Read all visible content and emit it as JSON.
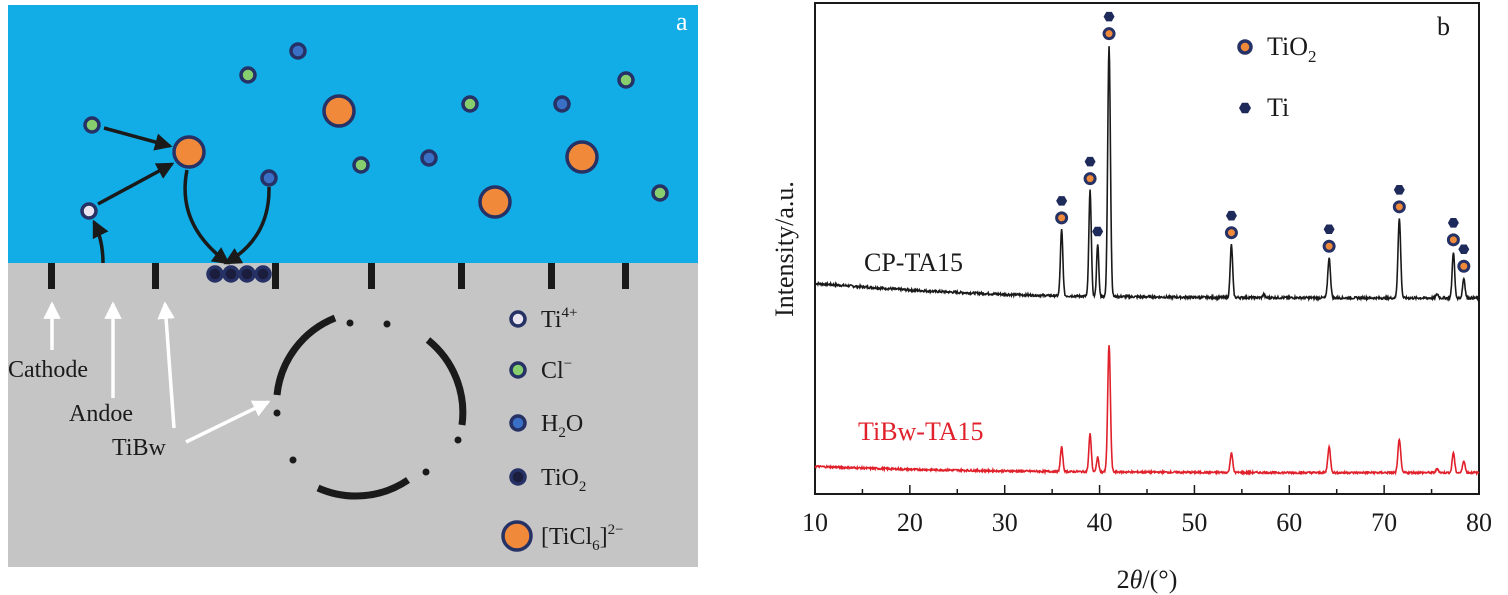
{
  "panel_a": {
    "label": "a",
    "colors": {
      "solution": "#12ADE6",
      "substrate": "#C5C5C6",
      "ti4": "#E8E4F0",
      "cl": "#86CE6E",
      "h2o": "#3A6FC6",
      "tio2": "#1B1D3D",
      "ticl6": "#F08A3A",
      "outline": "#263165"
    },
    "callouts": {
      "cathode": "Cathode",
      "anode": "Andoe",
      "tibw": "TiBw"
    },
    "legend": [
      {
        "key": "ti4",
        "label": "Ti",
        "sup": "4+",
        "sub_pre": "",
        "sub": ""
      },
      {
        "key": "cl",
        "label": "Cl",
        "sup": "−",
        "sub_pre": "",
        "sub": ""
      },
      {
        "key": "h2o",
        "label": "H",
        "sub": "2",
        "after": "O",
        "sup": ""
      },
      {
        "key": "tio2",
        "label": "TiO",
        "sub": "2",
        "after": "",
        "sup": ""
      },
      {
        "key": "ticl6",
        "label": "[TiCl",
        "sub": "6",
        "after": "]",
        "sup": "2−"
      }
    ]
  },
  "chart_data": {
    "type": "line",
    "panel_label": "b",
    "xlabel_parts": {
      "pre": "2",
      "theta": "θ",
      "post": "/(°)"
    },
    "ylabel": "Intensity/a.u.",
    "xlim": [
      10,
      80
    ],
    "xticks": [
      10,
      20,
      30,
      40,
      50,
      60,
      70,
      80
    ],
    "y_ticks_shown": false,
    "grid": false,
    "legend_position": "top-center",
    "legend": [
      {
        "name": "TiO",
        "sub": "2",
        "marker": "ring-dot"
      },
      {
        "name": "Ti",
        "sub": "",
        "marker": "hex"
      }
    ],
    "series": [
      {
        "name": "CP-TA15",
        "color": "#1a1a1a",
        "baseline": [
          [
            10,
            0.5
          ],
          [
            15,
            0.4
          ],
          [
            20,
            0.3
          ],
          [
            25,
            0.23
          ],
          [
            30,
            0.17
          ],
          [
            35,
            0.13
          ],
          [
            40,
            0.11
          ],
          [
            50,
            0.08
          ],
          [
            60,
            0.07
          ],
          [
            70,
            0.06
          ],
          [
            80,
            0.06
          ]
        ],
        "peaks": [
          {
            "x": 36.0,
            "h": 2.0,
            "w": 0.18
          },
          {
            "x": 39.0,
            "h": 3.2,
            "w": 0.18
          },
          {
            "x": 39.8,
            "h": 1.6,
            "w": 0.16
          },
          {
            "x": 41.0,
            "h": 7.6,
            "w": 0.2
          },
          {
            "x": 53.9,
            "h": 1.6,
            "w": 0.18
          },
          {
            "x": 57.3,
            "h": 0.1,
            "w": 0.15
          },
          {
            "x": 64.2,
            "h": 1.2,
            "w": 0.2
          },
          {
            "x": 71.6,
            "h": 2.4,
            "w": 0.2
          },
          {
            "x": 75.6,
            "h": 0.12,
            "w": 0.18
          },
          {
            "x": 77.3,
            "h": 1.4,
            "w": 0.18
          },
          {
            "x": 78.4,
            "h": 0.6,
            "w": 0.18
          }
        ],
        "markers": [
          {
            "x": 36.0,
            "types": [
              "tio2",
              "ti"
            ]
          },
          {
            "x": 39.0,
            "types": [
              "tio2",
              "ti"
            ]
          },
          {
            "x": 39.8,
            "types": [
              "ti"
            ]
          },
          {
            "x": 41.0,
            "types": [
              "tio2",
              "ti"
            ]
          },
          {
            "x": 53.9,
            "types": [
              "tio2",
              "ti"
            ]
          },
          {
            "x": 64.2,
            "types": [
              "tio2",
              "ti"
            ]
          },
          {
            "x": 71.6,
            "types": [
              "tio2",
              "ti"
            ]
          },
          {
            "x": 77.3,
            "types": [
              "tio2",
              "ti"
            ]
          },
          {
            "x": 78.4,
            "types": [
              "tio2",
              "ti"
            ]
          }
        ]
      },
      {
        "name": "TiBw-TA15",
        "color": "#e0202a",
        "baseline": [
          [
            10,
            0.28
          ],
          [
            15,
            0.22
          ],
          [
            20,
            0.17
          ],
          [
            30,
            0.11
          ],
          [
            40,
            0.08
          ],
          [
            50,
            0.06
          ],
          [
            60,
            0.05
          ],
          [
            70,
            0.05
          ],
          [
            80,
            0.05
          ]
        ],
        "peaks": [
          {
            "x": 36.0,
            "h": 0.9,
            "w": 0.18
          },
          {
            "x": 39.0,
            "h": 1.4,
            "w": 0.18
          },
          {
            "x": 39.8,
            "h": 0.55,
            "w": 0.16
          },
          {
            "x": 41.0,
            "h": 4.7,
            "w": 0.2
          },
          {
            "x": 53.9,
            "h": 0.75,
            "w": 0.18
          },
          {
            "x": 64.2,
            "h": 0.95,
            "w": 0.2
          },
          {
            "x": 71.6,
            "h": 1.25,
            "w": 0.2
          },
          {
            "x": 75.6,
            "h": 0.15,
            "w": 0.18
          },
          {
            "x": 77.3,
            "h": 0.75,
            "w": 0.18
          },
          {
            "x": 78.4,
            "h": 0.45,
            "w": 0.18
          }
        ],
        "markers": []
      }
    ]
  }
}
